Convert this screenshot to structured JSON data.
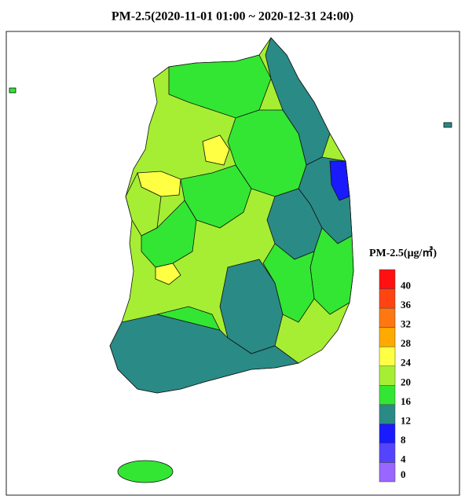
{
  "title": "PM-2.5(2020-11-01 01:00 ~ 2020-12-31 24:00)",
  "legend": {
    "title": "PM-2.5(μg/㎥)",
    "ticks": [
      0,
      4,
      8,
      12,
      16,
      20,
      24,
      28,
      32,
      36,
      40
    ],
    "colors": [
      "#9966ff",
      "#5544ff",
      "#1a1aff",
      "#2a8a86",
      "#33e633",
      "#a6ee33",
      "#ffff44",
      "#ffaa00",
      "#ff7711",
      "#ff4411",
      "#ff1111"
    ]
  }
}
